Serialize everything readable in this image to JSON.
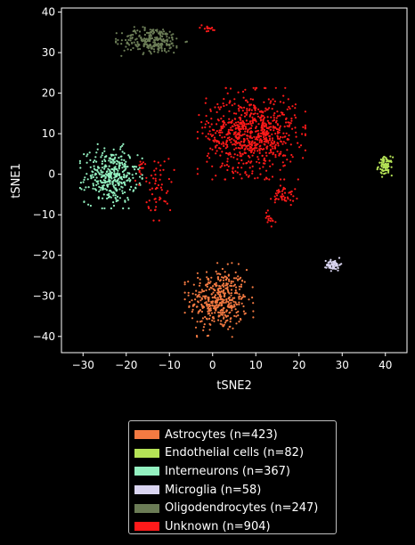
{
  "chart_data": {
    "type": "scatter",
    "title": "",
    "xlabel": "tSNE2",
    "ylabel": "tSNE1",
    "xlim": [
      -35,
      45
    ],
    "ylim": [
      -44,
      41
    ],
    "xticks": [
      -30,
      -20,
      -10,
      0,
      10,
      20,
      30,
      40
    ],
    "yticks": [
      -40,
      -30,
      -20,
      -10,
      0,
      10,
      20,
      30,
      40
    ],
    "xtick_labels": [
      "−30",
      "−20",
      "−10",
      "0",
      "10",
      "20",
      "30",
      "40"
    ],
    "ytick_labels": [
      "−40",
      "−30",
      "−20",
      "−10",
      "0",
      "10",
      "20",
      "30",
      "40"
    ],
    "grid": false,
    "legend_position": "below",
    "background": "#000000",
    "series": [
      {
        "name": "Astrocytes (n=423)",
        "color": "#f47a42",
        "clusters": [
          {
            "cx": 1.5,
            "cy": -31,
            "sx": 3.3,
            "sy": 3.8,
            "n": 423
          }
        ]
      },
      {
        "name": "Endothelial cells (n=82)",
        "color": "#b5e356",
        "clusters": [
          {
            "cx": 40,
            "cy": 2,
            "sx": 0.8,
            "sy": 1.1,
            "n": 82
          }
        ]
      },
      {
        "name": "Interneurons (n=367)",
        "color": "#93f0c0",
        "clusters": [
          {
            "cx": -23.5,
            "cy": -0.5,
            "sx": 3.0,
            "sy": 3.3,
            "n": 367
          }
        ]
      },
      {
        "name": "Microglia (n=58)",
        "color": "#d9d4f0",
        "clusters": [
          {
            "cx": 28,
            "cy": -22.3,
            "sx": 0.8,
            "sy": 0.7,
            "n": 58
          }
        ]
      },
      {
        "name": "Oligodendrocytes (n=247)",
        "color": "#6b7c56",
        "clusters": [
          {
            "cx": -14,
            "cy": 33,
            "sx": 3.5,
            "sy": 1.6,
            "n": 247
          }
        ]
      },
      {
        "name": "Unknown (n=904)",
        "color": "#ff1a1a",
        "clusters": [
          {
            "cx": 9,
            "cy": 10,
            "sx": 5.2,
            "sy": 4.7,
            "n": 760
          },
          {
            "cx": 16.5,
            "cy": -5,
            "sx": 1.3,
            "sy": 1.3,
            "n": 45
          },
          {
            "cx": -12.5,
            "cy": -3,
            "sx": 1.5,
            "sy": 3.5,
            "n": 55
          },
          {
            "cx": -1,
            "cy": 36,
            "sx": 1.2,
            "sy": 0.4,
            "n": 14
          },
          {
            "cx": 13,
            "cy": -11,
            "sx": 0.8,
            "sy": 1.2,
            "n": 16
          },
          {
            "cx": -16.5,
            "cy": 1,
            "sx": 0.8,
            "sy": 1.5,
            "n": 14
          }
        ]
      }
    ]
  }
}
